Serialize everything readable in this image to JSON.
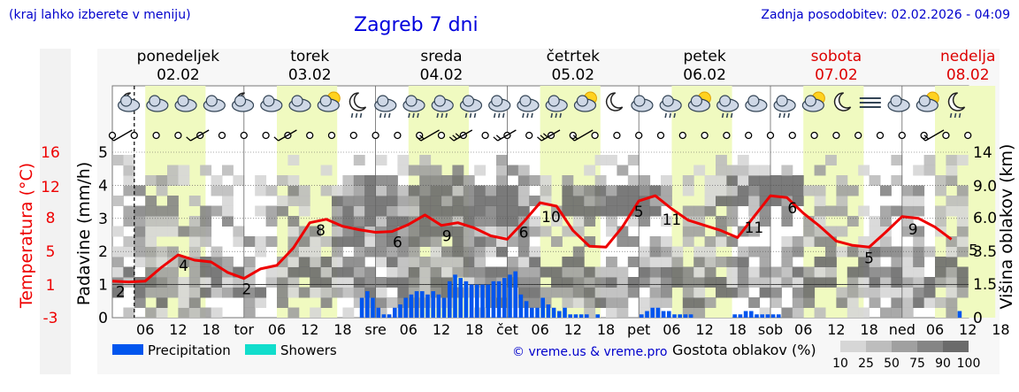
{
  "header": {
    "note": "(kraj lahko izberete v meniju)",
    "title": "Zagreb 7 dni",
    "updated": "Zadnja posodobitev: 02.02.2026 - 04:09"
  },
  "days": [
    {
      "name": "ponedeljek",
      "date": "02.02",
      "weekend": false
    },
    {
      "name": "torek",
      "date": "03.02",
      "weekend": false
    },
    {
      "name": "sreda",
      "date": "04.02",
      "weekend": false
    },
    {
      "name": "četrtek",
      "date": "05.02",
      "weekend": false
    },
    {
      "name": "petek",
      "date": "06.02",
      "weekend": false
    },
    {
      "name": "sobota",
      "date": "07.02",
      "weekend": true
    },
    {
      "name": "nedelja",
      "date": "08.02",
      "weekend": true
    }
  ],
  "weather_icons": [
    "night-cloud-icon",
    "cloud-icon",
    "cloud-icon",
    "cloud-icon",
    "moon-cloud-icon",
    "cloud-icon",
    "cloud-icon",
    "sun-cloud-icon",
    "moon-rain-icon",
    "rain-cloud-icon",
    "rain-cloud-icon",
    "rain-cloud-icon",
    "rain-cloud-icon",
    "rain-cloud-icon",
    "rain-cloud-icon",
    "rain-cloud-icon",
    "sun-cloud-icon",
    "moon-icon",
    "cloud-icon",
    "rain-cloud-icon",
    "sun-cloud-icon",
    "rain-cloud-icon",
    "cloud-icon",
    "rain-cloud-icon",
    "sun-cloud-icon",
    "moon-icon",
    "fog-icon",
    "cloud-icon",
    "sun-cloud-icon",
    "moon-rain-icon"
  ],
  "colors": {
    "temperature": "#ee0000",
    "precipitation": "#0055ee",
    "showers": "#11ddcc",
    "weekend": "#dd0000",
    "daylight": "#f0fac0",
    "labels": "#0000cc"
  },
  "chart_data": {
    "type": "line",
    "x_ticks": [
      "06",
      "12",
      "18",
      "tor",
      "06",
      "12",
      "18",
      "sre",
      "06",
      "12",
      "18",
      "čet",
      "06",
      "12",
      "18",
      "pet",
      "06",
      "12",
      "18",
      "sob",
      "06",
      "12",
      "18",
      "ned",
      "06",
      "12",
      "18"
    ],
    "left_axis": {
      "label": "Padavine (mm/h)",
      "range": [
        0,
        5
      ],
      "ticks": [
        "0",
        "1",
        "2",
        "3",
        "4",
        "5"
      ]
    },
    "temp_axis": {
      "label": "Temperatura (°C)",
      "range": [
        -3,
        16
      ],
      "ticks": [
        "16",
        "12",
        "8",
        "5",
        "1",
        "-3"
      ]
    },
    "right_axis": {
      "label": "Višina oblakov (km)",
      "range": [
        0,
        14
      ],
      "ticks": [
        "0",
        "1.5",
        "3.5",
        "6.0",
        "9.0",
        "14"
      ]
    },
    "series": [
      {
        "name": "Temperatura",
        "unit": "°C",
        "values": [
          [
            0,
            1.2
          ],
          [
            3,
            1.1
          ],
          [
            6,
            1.2
          ],
          [
            9,
            2.8
          ],
          [
            12,
            4.2
          ],
          [
            15,
            3.6
          ],
          [
            18,
            3.4
          ],
          [
            21,
            2.2
          ],
          [
            24,
            1.5
          ],
          [
            27,
            2.6
          ],
          [
            30,
            3.0
          ],
          [
            33,
            5.0
          ],
          [
            36,
            7.9
          ],
          [
            39,
            8.3
          ],
          [
            42,
            7.5
          ],
          [
            45,
            7.1
          ],
          [
            48,
            6.8
          ],
          [
            51,
            6.9
          ],
          [
            54,
            7.7
          ],
          [
            57,
            8.8
          ],
          [
            60,
            7.6
          ],
          [
            63,
            7.9
          ],
          [
            66,
            7.3
          ],
          [
            69,
            6.4
          ],
          [
            72,
            6.0
          ],
          [
            75,
            8.0
          ],
          [
            78,
            10.2
          ],
          [
            81,
            9.8
          ],
          [
            84,
            7.0
          ],
          [
            87,
            5.2
          ],
          [
            90,
            5.1
          ],
          [
            93,
            7.4
          ],
          [
            96,
            10.4
          ],
          [
            99,
            11.0
          ],
          [
            102,
            9.5
          ],
          [
            105,
            8.2
          ],
          [
            108,
            7.6
          ],
          [
            111,
            7.0
          ],
          [
            114,
            6.2
          ],
          [
            117,
            8.6
          ],
          [
            120,
            11.0
          ],
          [
            123,
            10.8
          ],
          [
            126,
            9.0
          ],
          [
            129,
            7.5
          ],
          [
            132,
            5.8
          ],
          [
            135,
            5.3
          ],
          [
            138,
            5.1
          ],
          [
            141,
            6.8
          ],
          [
            144,
            8.6
          ],
          [
            147,
            8.4
          ],
          [
            150,
            7.4
          ],
          [
            153,
            6.0
          ]
        ]
      },
      {
        "name": "Precipitation",
        "unit": "mm/h",
        "values": [
          [
            45,
            0.6
          ],
          [
            46,
            0.8
          ],
          [
            47,
            0.6
          ],
          [
            48,
            0.3
          ],
          [
            49,
            0.1
          ],
          [
            50,
            0.1
          ],
          [
            51,
            0.3
          ],
          [
            52,
            0.4
          ],
          [
            53,
            0.6
          ],
          [
            54,
            0.7
          ],
          [
            55,
            0.8
          ],
          [
            56,
            0.8
          ],
          [
            57,
            0.7
          ],
          [
            58,
            0.8
          ],
          [
            59,
            0.7
          ],
          [
            60,
            0.6
          ],
          [
            61,
            1.1
          ],
          [
            62,
            1.3
          ],
          [
            63,
            1.2
          ],
          [
            64,
            1.1
          ],
          [
            65,
            1.0
          ],
          [
            66,
            1.0
          ],
          [
            67,
            1.0
          ],
          [
            68,
            1.0
          ],
          [
            69,
            1.1
          ],
          [
            70,
            1.1
          ],
          [
            71,
            1.2
          ],
          [
            72,
            1.3
          ],
          [
            73,
            1.4
          ],
          [
            74,
            0.7
          ],
          [
            75,
            0.5
          ],
          [
            76,
            0.3
          ],
          [
            77,
            0.3
          ],
          [
            78,
            0.6
          ],
          [
            79,
            0.4
          ],
          [
            80,
            0.3
          ],
          [
            81,
            0.2
          ],
          [
            82,
            0.3
          ],
          [
            83,
            0.1
          ],
          [
            84,
            0.1
          ],
          [
            85,
            0.1
          ],
          [
            86,
            0.1
          ],
          [
            88,
            0.1
          ],
          [
            96,
            0.1
          ],
          [
            97,
            0.2
          ],
          [
            98,
            0.3
          ],
          [
            99,
            0.3
          ],
          [
            100,
            0.2
          ],
          [
            101,
            0.2
          ],
          [
            102,
            0.1
          ],
          [
            103,
            0.1
          ],
          [
            104,
            0.1
          ],
          [
            105,
            0.1
          ],
          [
            113,
            0.1
          ],
          [
            114,
            0.1
          ],
          [
            115,
            0.2
          ],
          [
            116,
            0.2
          ],
          [
            117,
            0.1
          ],
          [
            118,
            0.1
          ],
          [
            119,
            0.1
          ],
          [
            120,
            0.1
          ],
          [
            121,
            0.1
          ],
          [
            154,
            0.2
          ]
        ]
      },
      {
        "name": "Showers",
        "unit": "mm/h",
        "values": []
      }
    ],
    "temperature_labels": [
      {
        "x": 1.5,
        "y": "2"
      },
      {
        "x": 13,
        "y": "4"
      },
      {
        "x": 24.5,
        "y": "2"
      },
      {
        "x": 38,
        "y": "8"
      },
      {
        "x": 52,
        "y": "6"
      },
      {
        "x": 61,
        "y": "9"
      },
      {
        "x": 75,
        "y": "6"
      },
      {
        "x": 80,
        "y": "10"
      },
      {
        "x": 96,
        "y": "5"
      },
      {
        "x": 102,
        "y": "11"
      },
      {
        "x": 124,
        "y": "6"
      },
      {
        "x": 117,
        "y": "11"
      },
      {
        "x": 138,
        "y": "5"
      },
      {
        "x": 146,
        "y": "9"
      },
      {
        "x": 157,
        "y": "5"
      }
    ],
    "legend": {
      "items": [
        "Precipitation",
        "Showers"
      ],
      "copyright": "© vreme.us & vreme.pro",
      "cloud_title": "Gostota oblakov (%)",
      "cloud_scale": [
        "10",
        "25",
        "50",
        "75",
        "90",
        "100"
      ]
    }
  }
}
